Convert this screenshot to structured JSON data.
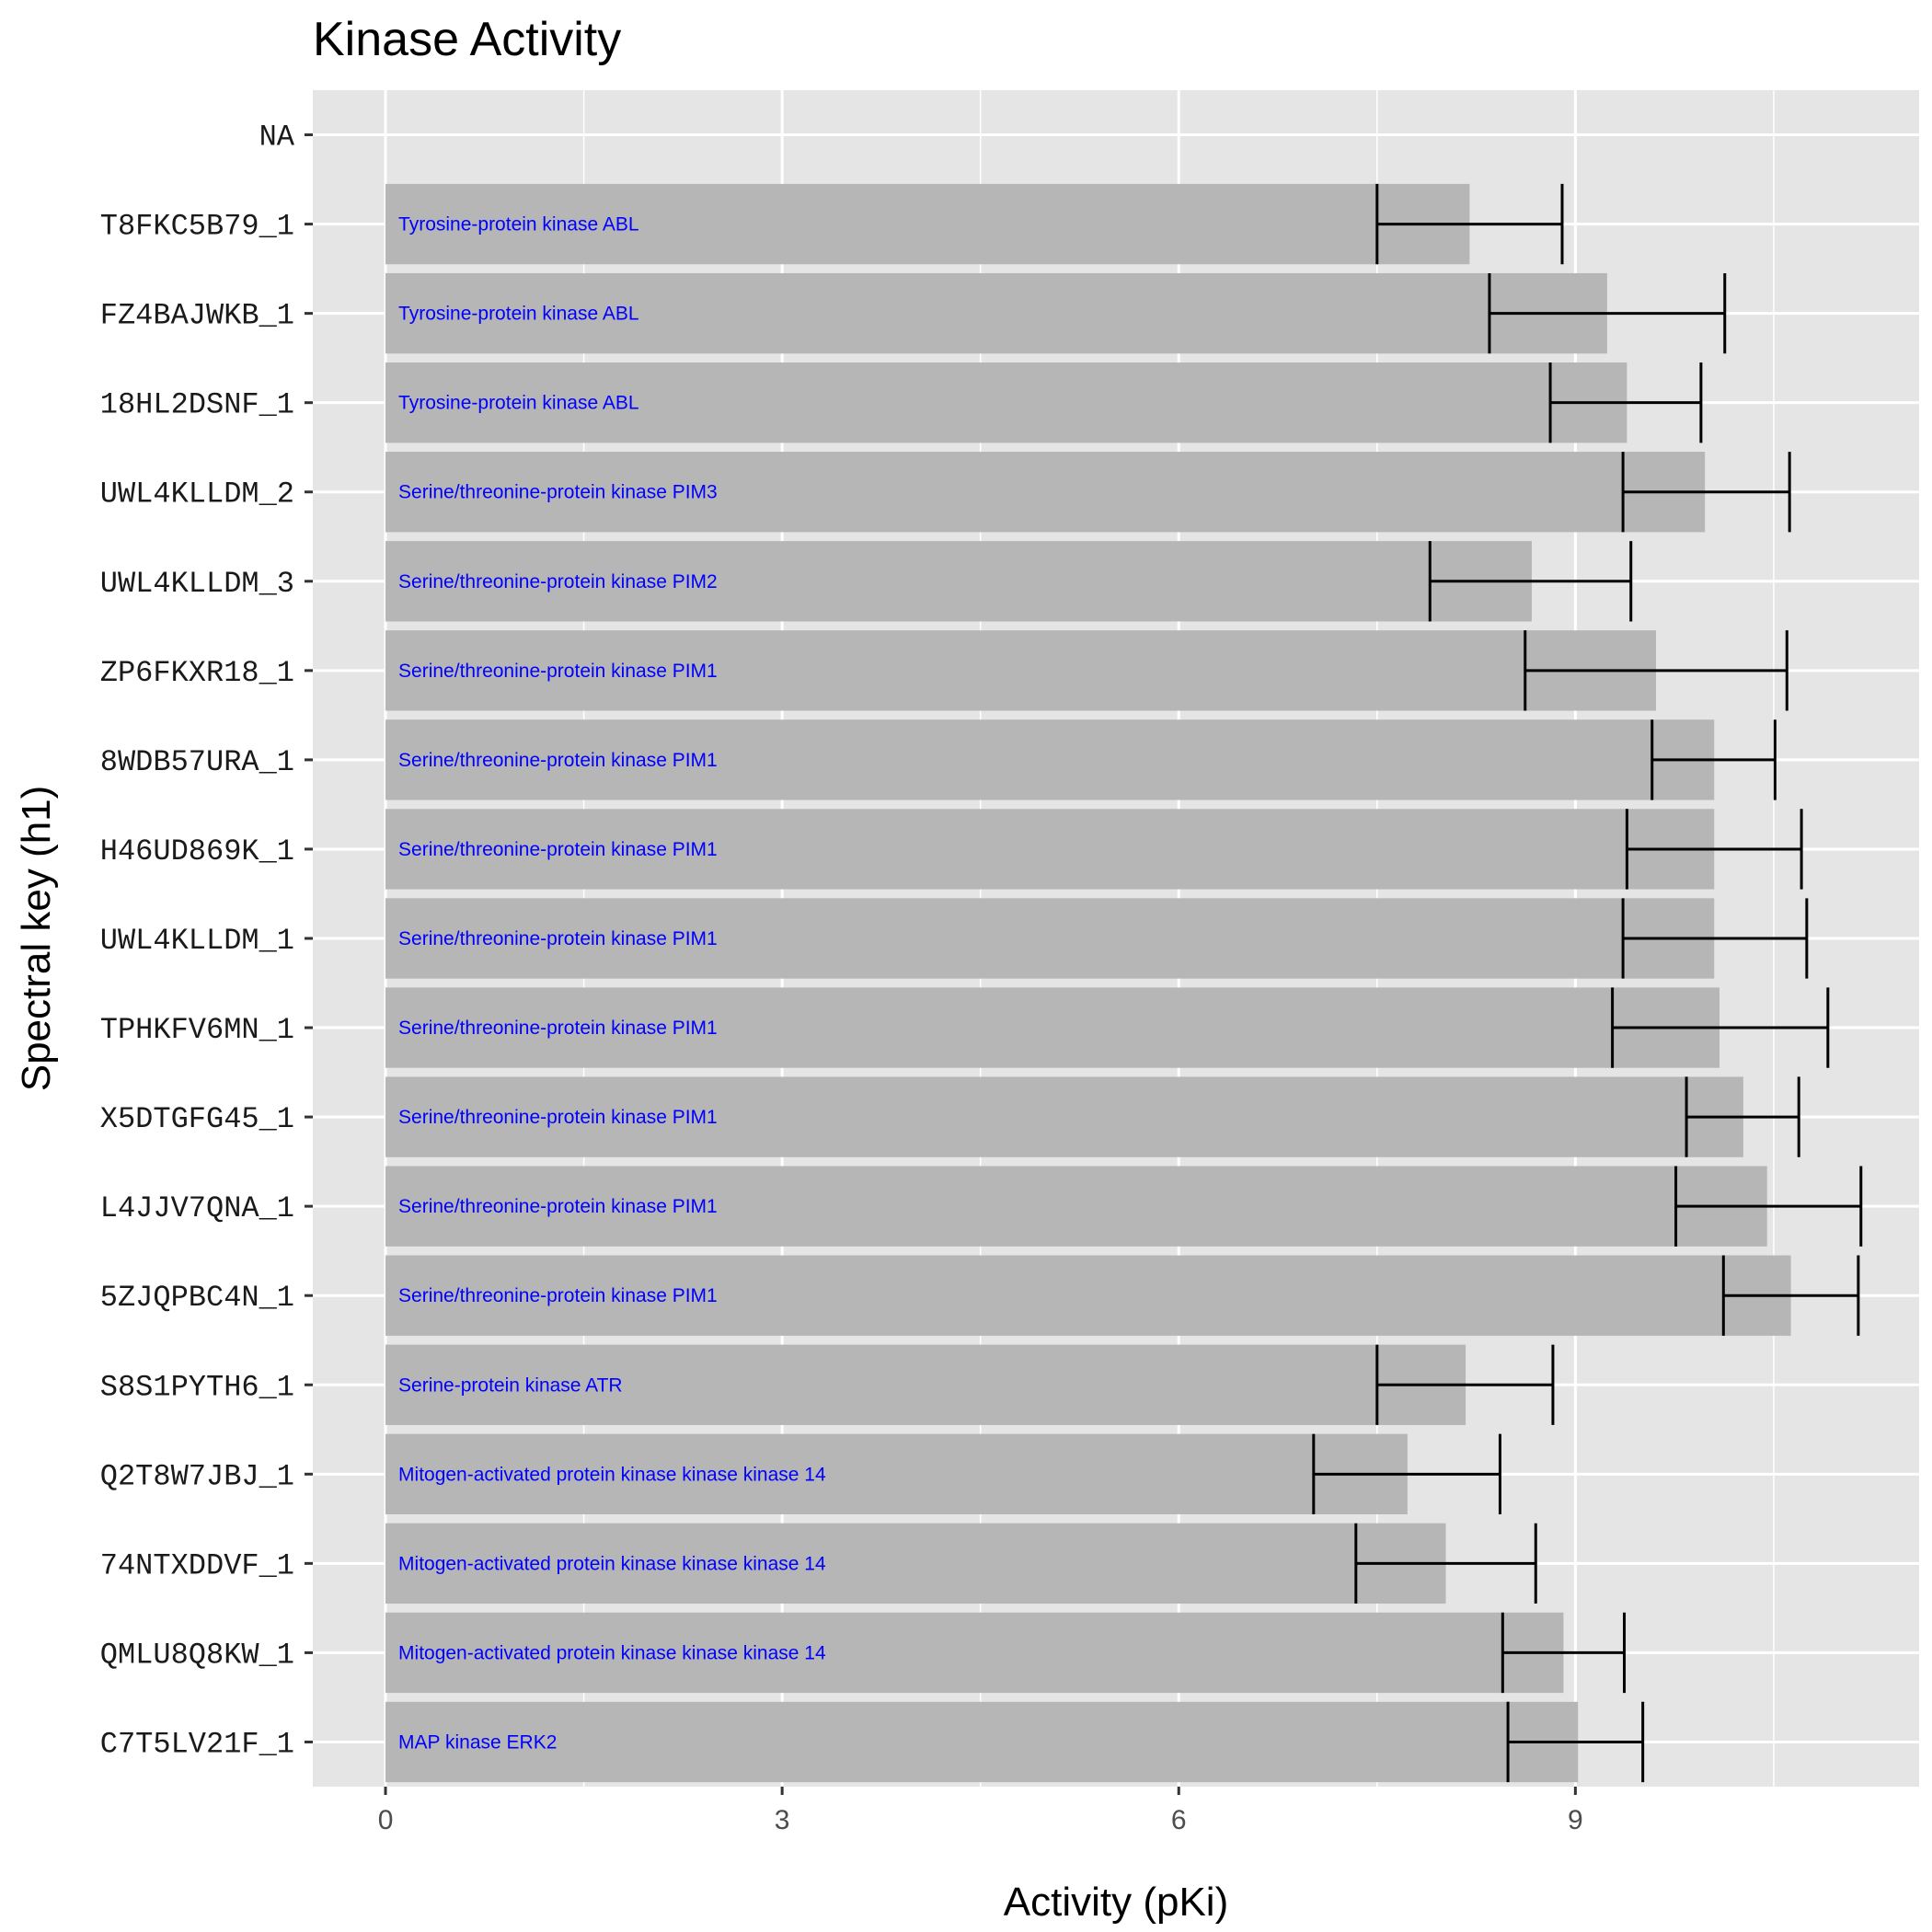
{
  "chart_data": {
    "type": "bar",
    "orientation": "horizontal",
    "title": "Kinase Activity",
    "xlabel": "Activity (pKi)",
    "ylabel": "Spectral key (h1)",
    "xlim": [
      -0.55,
      11.6
    ],
    "xticks": [
      0,
      3,
      6,
      9
    ],
    "grid": true,
    "legend": "none",
    "colors": {
      "panel": "#e5e5e5",
      "grid": "#ffffff",
      "bar": "#b6b6b6",
      "errorbar": "#000000",
      "bar_label": "#0000ff"
    },
    "categories": [
      "NA",
      "T8FKC5B79_1",
      "FZ4BAJWKB_1",
      "18HL2DSNF_1",
      "UWL4KLLDM_2",
      "UWL4KLLDM_3",
      "ZP6FKXR18_1",
      "8WDB57URA_1",
      "H46UD869K_1",
      "UWL4KLLDM_1",
      "TPHKFV6MN_1",
      "X5DTGFG45_1",
      "L4JJV7QNA_1",
      "5ZJQPBC4N_1",
      "S8S1PYTH6_1",
      "Q2T8W7JBJ_1",
      "74NTXDDVF_1",
      "QMLU8Q8KW_1",
      "C7T5LV21F_1"
    ],
    "values": [
      null,
      8.2,
      9.24,
      9.39,
      9.98,
      8.67,
      9.61,
      10.05,
      10.05,
      10.05,
      10.09,
      10.27,
      10.45,
      10.63,
      8.17,
      7.73,
      8.02,
      8.91,
      9.02
    ],
    "error_low": [
      null,
      7.5,
      8.35,
      8.81,
      9.36,
      7.9,
      8.62,
      9.58,
      9.39,
      9.36,
      9.28,
      9.84,
      9.76,
      10.12,
      7.5,
      7.02,
      7.34,
      8.45,
      8.49
    ],
    "error_high": [
      null,
      8.9,
      10.13,
      9.95,
      10.62,
      9.42,
      10.6,
      10.51,
      10.71,
      10.75,
      10.91,
      10.69,
      11.16,
      11.14,
      8.83,
      8.43,
      8.7,
      9.37,
      9.51
    ],
    "labels": [
      "",
      "Tyrosine-protein kinase ABL",
      "Tyrosine-protein kinase ABL",
      "Tyrosine-protein kinase ABL",
      "Serine/threonine-protein kinase PIM3",
      "Serine/threonine-protein kinase PIM2",
      "Serine/threonine-protein kinase PIM1",
      "Serine/threonine-protein kinase PIM1",
      "Serine/threonine-protein kinase PIM1",
      "Serine/threonine-protein kinase PIM1",
      "Serine/threonine-protein kinase PIM1",
      "Serine/threonine-protein kinase PIM1",
      "Serine/threonine-protein kinase PIM1",
      "Serine/threonine-protein kinase PIM1",
      "Serine-protein kinase ATR",
      "Mitogen-activated protein kinase kinase kinase 14",
      "Mitogen-activated protein kinase kinase kinase 14",
      "Mitogen-activated protein kinase kinase kinase 14",
      "MAP kinase ERK2"
    ]
  }
}
